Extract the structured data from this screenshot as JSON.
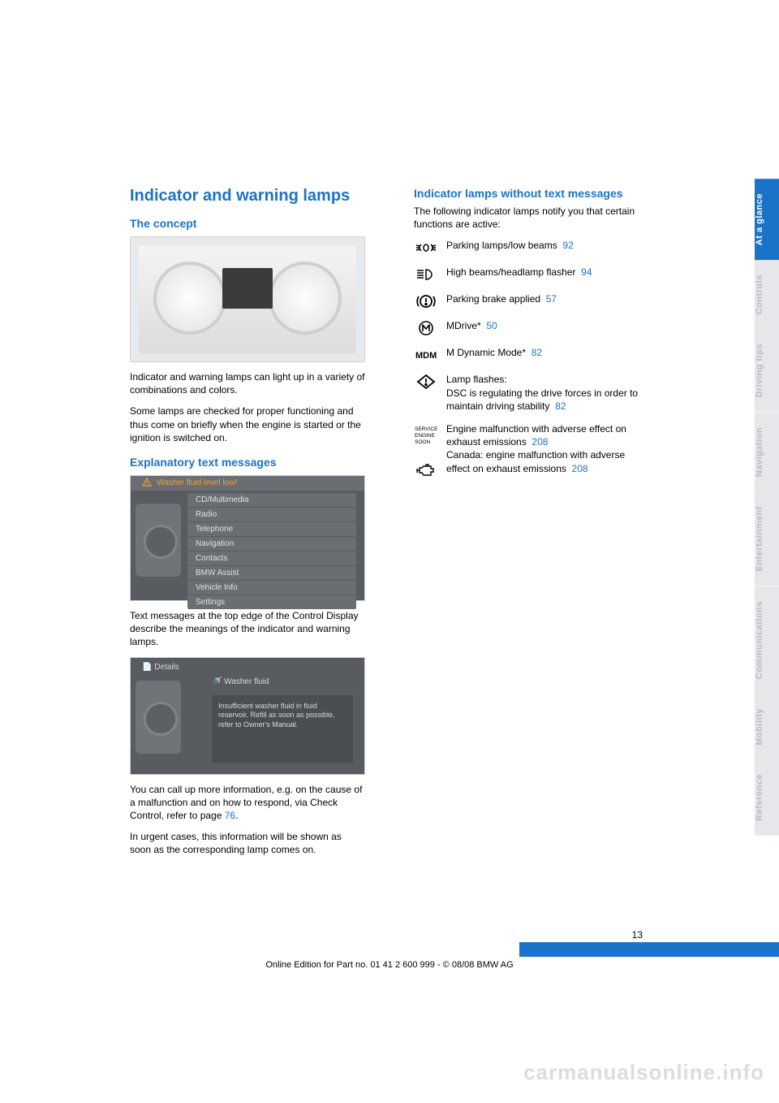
{
  "colors": {
    "accent": "#1a73c8",
    "text": "#000000",
    "tab_inactive_bg": "#e6e7ea",
    "tab_inactive_fg": "#b9bcc3",
    "img_bg": "#e8e9ea"
  },
  "heading": "Indicator and warning lamps",
  "left": {
    "concept_heading": "The concept",
    "concept_p1": "Indicator and warning lamps can light up in a variety of combinations and colors.",
    "concept_p2": "Some lamps are checked for proper functioning and thus come on briefly when the engine is started or the ignition is switched on.",
    "explain_heading": "Explanatory text messages",
    "explain_p1": "Text messages at the top edge of the Control Display describe the meanings of the indicator and warning lamps.",
    "explain_p2a": "You can call up more information, e.g. on the cause of a malfunction and on how to respond, via Check Control, refer to page ",
    "explain_p2_link": "76",
    "explain_p2b": ".",
    "explain_p3": "In urgent cases, this information will be shown as soon as the corresponding lamp comes on.",
    "menu_header": "Washer fluid level low!",
    "menu_items": [
      "CD/Multimedia",
      "Radio",
      "Telephone",
      "Navigation",
      "Contacts",
      "BMW Assist",
      "Vehicle Info",
      "Settings"
    ],
    "detail_header": "Details",
    "detail_title": "Washer fluid",
    "detail_body": "Insufficient washer fluid in fluid reservoir. Refill as soon as possible, refer to Owner's Manual."
  },
  "right": {
    "heading": "Indicator lamps without text messages",
    "intro": "The following indicator lamps notify you that certain functions are active:",
    "rows": [
      {
        "icon": "parking-lamps",
        "text": "Parking lamps/low beams",
        "link": "92"
      },
      {
        "icon": "high-beam",
        "text": "High beams/headlamp flasher",
        "link": "94"
      },
      {
        "icon": "parking-brake",
        "text": "Parking brake applied",
        "link": "57"
      },
      {
        "icon": "mdrive",
        "text": "MDrive",
        "star": true,
        "link": "50"
      },
      {
        "icon": "mdm",
        "text": "M Dynamic Mode",
        "star": true,
        "link": "82"
      },
      {
        "icon": "dsc",
        "text_pre": "Lamp flashes:",
        "text": "DSC is regulating the drive forces in order to maintain driving stability",
        "link": "82"
      },
      {
        "icon": "service-engine",
        "text": "Engine malfunction with adverse effect on exhaust emissions",
        "link": "208",
        "text2": "Canada: engine malfunction with adverse effect on exhaust emissions",
        "link2": "208",
        "icon2": "engine"
      }
    ]
  },
  "tabs": [
    {
      "label": "At a glance",
      "active": true
    },
    {
      "label": "Controls",
      "active": false
    },
    {
      "label": "Driving tips",
      "active": false
    },
    {
      "label": "Navigation",
      "active": false
    },
    {
      "label": "Entertainment",
      "active": false
    },
    {
      "label": "Communications",
      "active": false
    },
    {
      "label": "Mobility",
      "active": false
    },
    {
      "label": "Reference",
      "active": false
    }
  ],
  "page_number": "13",
  "footer": "Online Edition for Part no. 01 41 2 600 999 - © 08/08 BMW AG",
  "watermark": "carmanualsonline.info"
}
